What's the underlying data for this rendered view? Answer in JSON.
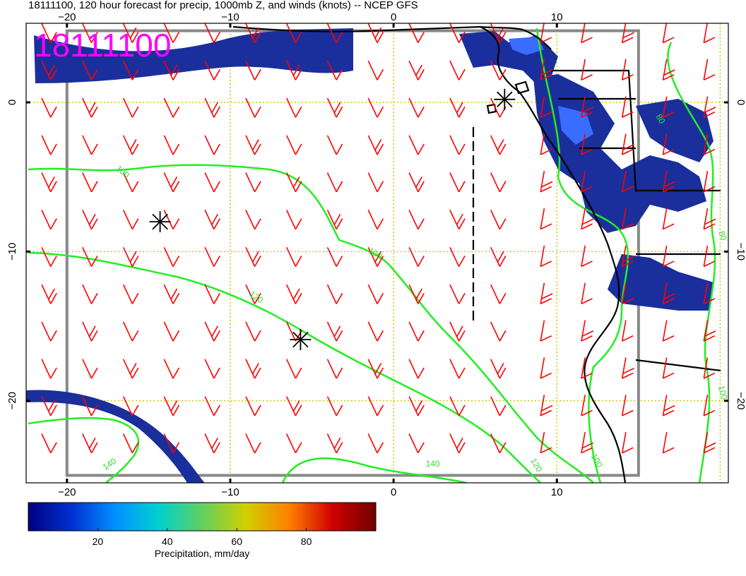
{
  "title": "18111100, 120 hour forecast for precip, 1000mb Z, and winds (knots) -- NCEP GFS",
  "date_stamp": "18111100",
  "map": {
    "lon_range": [
      -22.5,
      20.5
    ],
    "lat_range": [
      -25.5,
      5.3
    ],
    "lon_ticks": [
      -20,
      -10,
      0,
      10
    ],
    "lat_ticks": [
      0,
      -10,
      -20
    ],
    "lon_tick_labels": [
      "−20",
      "−10",
      "0",
      "10"
    ],
    "lat_tick_labels": [
      "0",
      "−10",
      "−20"
    ],
    "grid_lons": [
      -20,
      -10,
      0,
      10,
      20
    ],
    "grid_lats": [
      0,
      -10,
      -20
    ],
    "grid_color": "#d4c800",
    "wind_color": "#ff0000",
    "contour_color": "#22ee22",
    "coast_color": "#000000",
    "precip_fill": "#1a2f9c",
    "precip_core": "#3a6cff",
    "lows": [
      {
        "lon": -14.3,
        "lat": -8.0
      },
      {
        "lon": -5.7,
        "lat": -15.9
      },
      {
        "lon": 6.8,
        "lat": 0.2
      }
    ],
    "contour_labels": [
      {
        "text": "100",
        "lon": -16.7,
        "lat": -4.8,
        "rot": 40
      },
      {
        "text": "100",
        "lon": -1.2,
        "lat": -10.3,
        "rot": 28
      },
      {
        "text": "120",
        "lon": -8.5,
        "lat": -13.2,
        "rot": 35
      },
      {
        "text": "140",
        "lon": -17.3,
        "lat": -24.4,
        "rot": -35
      },
      {
        "text": "140",
        "lon": 2.4,
        "lat": -24.4,
        "rot": 0
      },
      {
        "text": "120",
        "lon": 8.6,
        "lat": -24.4,
        "rot": 60
      },
      {
        "text": "100",
        "lon": 12.3,
        "lat": -24.1,
        "rot": 60
      },
      {
        "text": "80",
        "lon": 16.2,
        "lat": -1.2,
        "rot": 60
      },
      {
        "text": "80",
        "lon": 20.0,
        "lat": -9.0,
        "rot": 70
      },
      {
        "text": "100",
        "lon": 20.0,
        "lat": -19.5,
        "rot": 75
      }
    ]
  },
  "colorbar": {
    "label": "Precipitation, mm/day",
    "ticks": [
      20,
      40,
      60,
      80
    ],
    "range": [
      0,
      100
    ],
    "stops": [
      "#000080",
      "#0030d0",
      "#0090ff",
      "#00d0d0",
      "#60d060",
      "#d0d000",
      "#ff8000",
      "#d00000",
      "#700000"
    ]
  }
}
